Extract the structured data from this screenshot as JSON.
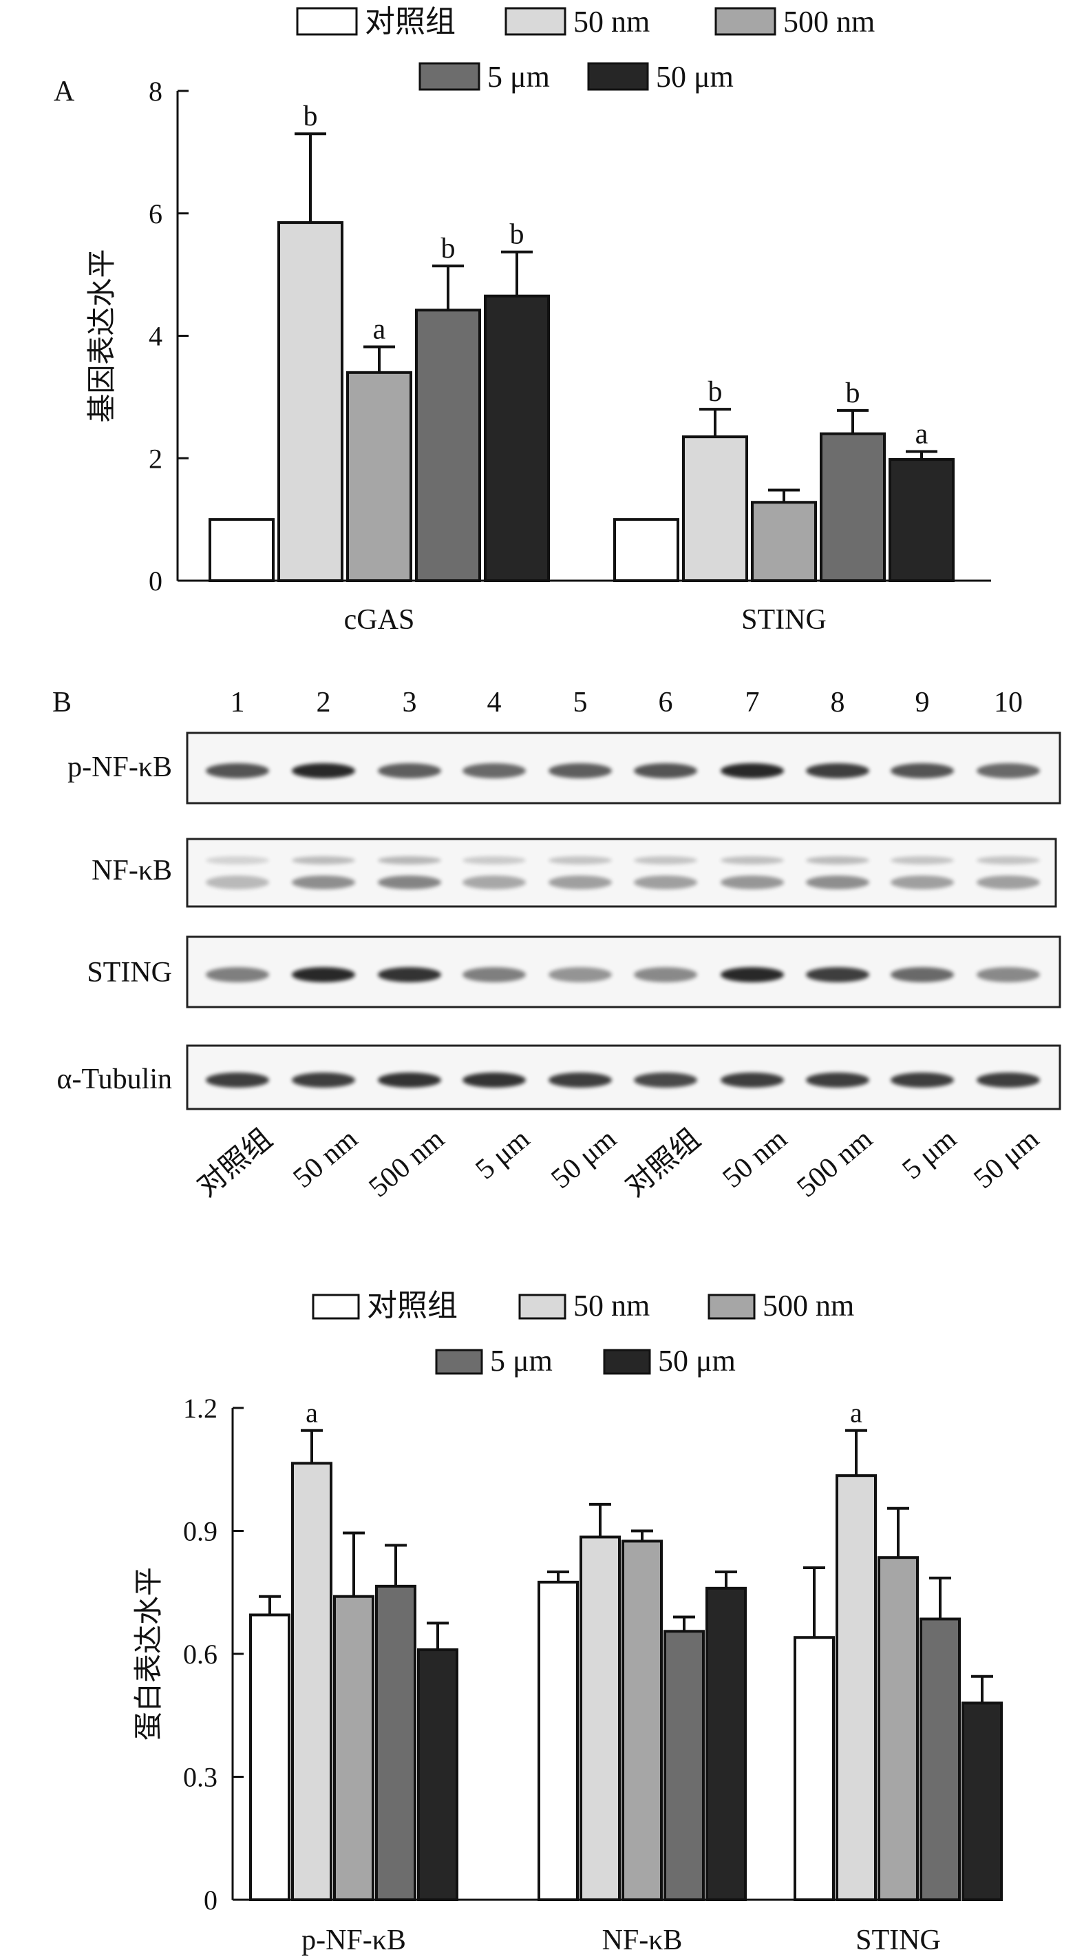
{
  "colors": {
    "group_fills": [
      "#ffffff",
      "#d9d9d9",
      "#a6a6a6",
      "#6d6d6d",
      "#262626"
    ],
    "axis": "#111111",
    "blot_frame": "#222222",
    "blot_bg": "#f6f6f6",
    "band": "#1e1e1e"
  },
  "chart_data": [
    {
      "type": "bar",
      "panel": "A",
      "categories": [
        "cGAS",
        "STING"
      ],
      "legend": [
        "对照组",
        "50 nm",
        "500 nm",
        "5 μm",
        "50 μm"
      ],
      "legend_position": "top-center",
      "series": [
        {
          "name": "对照组",
          "values": [
            1.0,
            1.0
          ],
          "errors": [
            0,
            0
          ],
          "labels": [
            "",
            ""
          ]
        },
        {
          "name": "50 nm",
          "values": [
            5.85,
            2.35
          ],
          "errors": [
            1.45,
            0.45
          ],
          "labels": [
            "b",
            "b"
          ]
        },
        {
          "name": "500 nm",
          "values": [
            3.4,
            1.28
          ],
          "errors": [
            0.42,
            0.2
          ],
          "labels": [
            "a",
            ""
          ]
        },
        {
          "name": "5 μm",
          "values": [
            4.42,
            2.4
          ],
          "errors": [
            0.72,
            0.38
          ],
          "labels": [
            "b",
            "b"
          ]
        },
        {
          "name": "50 μm",
          "values": [
            4.65,
            1.98
          ],
          "errors": [
            0.72,
            0.13
          ],
          "labels": [
            "b",
            "a"
          ]
        }
      ],
      "ylabel": "基因表达水平",
      "xlabel": "",
      "ylim": [
        0,
        8
      ],
      "yticks": [
        "0",
        "2",
        "4",
        "6",
        "8"
      ],
      "grid": false
    },
    {
      "type": "bar",
      "panel": "B",
      "categories": [
        "p-NF-κB",
        "NF-κB",
        "STING"
      ],
      "legend": [
        "对照组",
        "50 nm",
        "500 nm",
        "5 μm",
        "50 μm"
      ],
      "legend_position": "top-center",
      "series": [
        {
          "name": "对照组",
          "values": [
            0.695,
            0.775,
            0.64
          ],
          "errors": [
            0.045,
            0.025,
            0.17
          ],
          "labels": [
            "",
            "",
            ""
          ]
        },
        {
          "name": "50 nm",
          "values": [
            1.065,
            0.885,
            1.035
          ],
          "errors": [
            0.08,
            0.08,
            0.11
          ],
          "labels": [
            "a",
            "",
            "a"
          ]
        },
        {
          "name": "500 nm",
          "values": [
            0.74,
            0.875,
            0.835
          ],
          "errors": [
            0.155,
            0.025,
            0.12
          ],
          "labels": [
            "",
            "",
            ""
          ]
        },
        {
          "name": "5 μm",
          "values": [
            0.765,
            0.655,
            0.685
          ],
          "errors": [
            0.1,
            0.035,
            0.1
          ],
          "labels": [
            "",
            "",
            ""
          ]
        },
        {
          "name": "50 μm",
          "values": [
            0.61,
            0.76,
            0.48
          ],
          "errors": [
            0.065,
            0.04,
            0.065
          ],
          "labels": [
            "",
            "",
            ""
          ]
        }
      ],
      "ylabel": "蛋白表达水平",
      "xlabel": "",
      "ylim": [
        0,
        1.2
      ],
      "yticks": [
        "0",
        "0.3",
        "0.6",
        "0.9",
        "1.2"
      ],
      "grid": false
    }
  ],
  "blot": {
    "panel_label": "B",
    "lane_numbers": [
      "1",
      "2",
      "3",
      "4",
      "5",
      "6",
      "7",
      "8",
      "9",
      "10"
    ],
    "lane_labels": [
      "对照组",
      "50 nm",
      "500 nm",
      "5 μm",
      "50 μm",
      "对照组",
      "50 nm",
      "500 nm",
      "5 μm",
      "50 μm"
    ],
    "rows": [
      {
        "label": "p-NF-κB",
        "intensities": [
          0.75,
          0.95,
          0.7,
          0.65,
          0.7,
          0.75,
          0.95,
          0.85,
          0.75,
          0.65
        ],
        "bands": 1
      },
      {
        "label": "NF-κB",
        "intensities": [
          0.35,
          0.6,
          0.65,
          0.45,
          0.5,
          0.5,
          0.55,
          0.6,
          0.5,
          0.5
        ],
        "bands": 2
      },
      {
        "label": "STING",
        "intensities": [
          0.55,
          0.95,
          0.9,
          0.55,
          0.45,
          0.5,
          0.95,
          0.85,
          0.65,
          0.5
        ],
        "bands": 1
      },
      {
        "label": "α-Tubulin",
        "intensities": [
          0.85,
          0.85,
          0.9,
          0.9,
          0.85,
          0.8,
          0.85,
          0.85,
          0.85,
          0.85
        ],
        "bands": 1
      }
    ]
  }
}
